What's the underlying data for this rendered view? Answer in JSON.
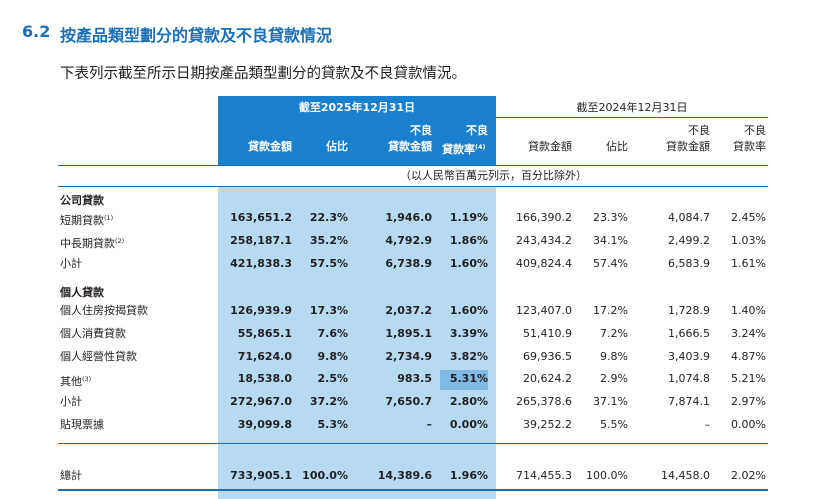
{
  "section": {
    "number": "6.2",
    "title": "按產品類型劃分的貸款及不良貸款情況"
  },
  "intro": "下表列示截至所示日期按產品類型劃分的貸款及不良貸款情況。",
  "header": {
    "period_2025": "截至2025年12月31日",
    "period_2024": "截至2024年12月31日",
    "columns": {
      "loan_amount": "貸款金額",
      "share": "佔比",
      "npl_amount_l1": "不良",
      "npl_amount_l2": "貸款金額",
      "npl_ratio_l1": "不良",
      "npl_ratio_l2": "貸款率",
      "npl_ratio_note": "(4)"
    },
    "unit_note": "（以人民幣百萬元列示，百分比除外）"
  },
  "groups": {
    "corporate": "公司貸款",
    "personal": "個人貸款"
  },
  "rows": [
    {
      "label": "短期貸款",
      "note": "(1)",
      "v": [
        "163,651.2",
        "22.3%",
        "1,946.0",
        "1.19%",
        "166,390.2",
        "23.3%",
        "4,084.7",
        "2.45%"
      ]
    },
    {
      "label": "中長期貸款",
      "note": "(2)",
      "v": [
        "258,187.1",
        "35.2%",
        "4,792.9",
        "1.86%",
        "243,434.2",
        "34.1%",
        "2,499.2",
        "1.03%"
      ]
    },
    {
      "label": "小計",
      "note": "",
      "v": [
        "421,838.3",
        "57.5%",
        "6,738.9",
        "1.60%",
        "409,824.4",
        "57.4%",
        "6,583.9",
        "1.61%"
      ]
    },
    {
      "label": "個人住房按揭貸款",
      "note": "",
      "v": [
        "126,939.9",
        "17.3%",
        "2,037.2",
        "1.60%",
        "123,407.0",
        "17.2%",
        "1,728.9",
        "1.40%"
      ]
    },
    {
      "label": "個人消費貸款",
      "note": "",
      "v": [
        "55,865.1",
        "7.6%",
        "1,895.1",
        "3.39%",
        "51,410.9",
        "7.2%",
        "1,666.5",
        "3.24%"
      ]
    },
    {
      "label": "個人經營性貸款",
      "note": "",
      "v": [
        "71,624.0",
        "9.8%",
        "2,734.9",
        "3.82%",
        "69,936.5",
        "9.8%",
        "3,403.9",
        "4.87%"
      ]
    },
    {
      "label": "其他",
      "note": "(3)",
      "v": [
        "18,538.0",
        "2.5%",
        "983.5",
        "5.31%",
        "20,624.2",
        "2.9%",
        "1,074.8",
        "5.21%"
      ]
    },
    {
      "label": "小計",
      "note": "",
      "v": [
        "272,967.0",
        "37.2%",
        "7,650.7",
        "2.80%",
        "265,378.6",
        "37.1%",
        "7,874.1",
        "2.97%"
      ]
    },
    {
      "label": "貼現票據",
      "note": "",
      "v": [
        "39,099.8",
        "5.3%",
        "–",
        "0.00%",
        "39,252.2",
        "5.5%",
        "–",
        "0.00%"
      ]
    }
  ],
  "total": {
    "label": "總計",
    "v": [
      "733,905.1",
      "100.0%",
      "14,389.6",
      "1.96%",
      "714,455.3",
      "100.0%",
      "14,458.0",
      "2.02%"
    ]
  },
  "colors": {
    "accent_blue": "#1c70b8",
    "header_band": "#1b7fcf",
    "body_band": "#b7d9f2",
    "rule": "#1b6fb5"
  }
}
